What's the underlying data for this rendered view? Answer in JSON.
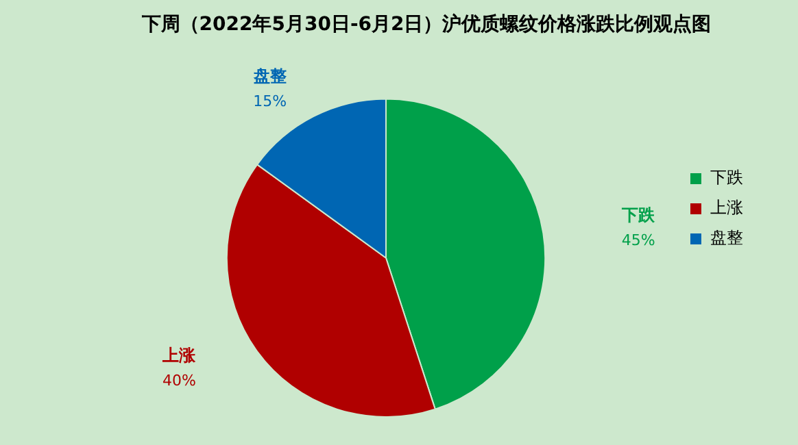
{
  "chart_data": {
    "type": "pie",
    "title": "下周（2022年5月30日-6月2日）沪优质螺纹价格涨跌比例观点图",
    "categories": [
      "下跌",
      "上涨",
      "盘整"
    ],
    "values": [
      45,
      40,
      15
    ],
    "colors": [
      "#00a04a",
      "#b00000",
      "#0066b3"
    ],
    "value_labels": [
      "45%",
      "40%",
      "15%"
    ],
    "legend": "right"
  }
}
